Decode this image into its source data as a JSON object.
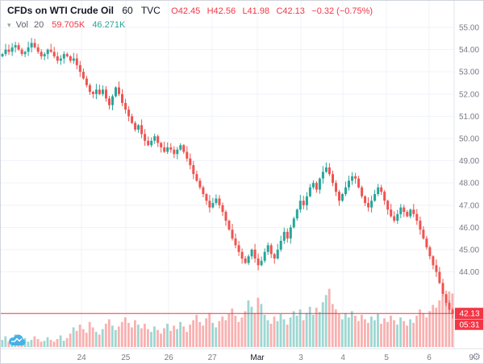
{
  "header": {
    "symbol": "CFDs on WTI Crude Oil",
    "interval": "60",
    "exchange": "TVC",
    "ohlc": {
      "o": "O42.45",
      "h": "H42.56",
      "l": "L41.98",
      "c": "C42.13",
      "change": "−0.32 (−0.75%)"
    }
  },
  "indicator": {
    "name": "Vol",
    "param": "20",
    "value": "59.705K",
    "ma_value": "46.271K"
  },
  "colors": {
    "up": "#26a69a",
    "down": "#ef5350",
    "grid": "#f0f3fa",
    "axis_text": "#787b86",
    "price_line": "#f23645",
    "axis_border": "#e0e3eb",
    "background": "#ffffff",
    "logo_blue": "#47b1e5"
  },
  "chart_data": {
    "type": "candlestick",
    "title": "CFDs on WTI Crude Oil, 60, TVC",
    "ylim": [
      40.6,
      56.2
    ],
    "grid": true,
    "current_price": 42.13,
    "current_price_label": "42.13",
    "countdown": "05:31",
    "first_open": 53.7,
    "vol_max": 70,
    "y_ticks": [
      {
        "label": "55.00",
        "value": 55
      },
      {
        "label": "54.00",
        "value": 54
      },
      {
        "label": "53.00",
        "value": 53
      },
      {
        "label": "52.00",
        "value": 52
      },
      {
        "label": "51.00",
        "value": 51
      },
      {
        "label": "50.00",
        "value": 50
      },
      {
        "label": "49.00",
        "value": 49
      },
      {
        "label": "48.00",
        "value": 48
      },
      {
        "label": "47.00",
        "value": 47
      },
      {
        "label": "46.00",
        "value": 46
      },
      {
        "label": "45.00",
        "value": 45
      },
      {
        "label": "44.00",
        "value": 44
      }
    ],
    "time_labels": [
      {
        "text": "24",
        "x": 0.167
      },
      {
        "text": "25",
        "x": 0.258
      },
      {
        "text": "26",
        "x": 0.347
      },
      {
        "text": "27",
        "x": 0.437
      },
      {
        "text": "Mar",
        "x": 0.53,
        "bold": true
      },
      {
        "text": "3",
        "x": 0.62
      },
      {
        "text": "4",
        "x": 0.707
      },
      {
        "text": "5",
        "x": 0.797
      },
      {
        "text": "6",
        "x": 0.885
      },
      {
        "text": "9",
        "x": 0.972
      }
    ],
    "closes": [
      53.8,
      54.0,
      53.9,
      54.1,
      54.2,
      54.0,
      53.8,
      53.9,
      54.1,
      54.3,
      54.1,
      53.9,
      53.7,
      53.8,
      54.0,
      53.9,
      53.7,
      53.5,
      53.6,
      53.8,
      53.7,
      53.5,
      53.6,
      53.3,
      53.0,
      52.7,
      52.4,
      52.1,
      52.0,
      52.2,
      52.0,
      52.2,
      51.8,
      51.5,
      51.9,
      52.3,
      52.0,
      51.6,
      51.3,
      51.0,
      50.7,
      50.4,
      50.6,
      50.2,
      49.9,
      49.7,
      49.9,
      50.1,
      49.8,
      49.6,
      49.4,
      49.6,
      49.5,
      49.3,
      49.5,
      49.7,
      49.4,
      49.1,
      48.8,
      48.4,
      48.1,
      47.8,
      47.5,
      47.2,
      46.9,
      47.1,
      47.3,
      47.0,
      46.7,
      46.3,
      45.9,
      45.5,
      45.2,
      44.9,
      44.6,
      44.4,
      44.7,
      45.0,
      44.6,
      44.3,
      44.5,
      44.9,
      45.2,
      44.8,
      44.6,
      45.0,
      45.4,
      45.8,
      45.5,
      46.0,
      46.4,
      46.8,
      47.2,
      47.0,
      47.4,
      47.8,
      48.0,
      47.7,
      48.2,
      48.5,
      48.7,
      48.4,
      48.0,
      47.6,
      47.2,
      47.5,
      47.8,
      48.1,
      48.3,
      48.2,
      47.8,
      47.4,
      47.1,
      46.9,
      47.2,
      47.5,
      47.8,
      47.6,
      47.2,
      46.8,
      46.5,
      46.3,
      46.6,
      46.9,
      46.7,
      46.5,
      46.8,
      46.6,
      46.3,
      45.9,
      45.5,
      45.1,
      44.7,
      44.3,
      44.0,
      43.5,
      43.0,
      42.6,
      42.3,
      42.13
    ],
    "volumes": [
      8,
      12,
      6,
      9,
      14,
      7,
      5,
      10,
      6,
      8,
      12,
      9,
      6,
      7,
      11,
      8,
      6,
      9,
      13,
      7,
      10,
      15,
      22,
      18,
      25,
      20,
      16,
      28,
      22,
      17,
      14,
      20,
      26,
      31,
      24,
      19,
      23,
      28,
      33,
      27,
      22,
      30,
      25,
      21,
      26,
      20,
      17,
      23,
      19,
      15,
      21,
      26,
      18,
      24,
      20,
      28,
      23,
      17,
      25,
      30,
      36,
      28,
      24,
      32,
      38,
      27,
      22,
      29,
      34,
      30,
      37,
      43,
      35,
      28,
      33,
      40,
      52,
      45,
      38,
      55,
      48,
      36,
      30,
      26,
      34,
      29,
      37,
      31,
      25,
      33,
      40,
      35,
      42,
      30,
      38,
      45,
      36,
      44,
      39,
      50,
      58,
      65,
      48,
      42,
      37,
      31,
      38,
      33,
      40,
      35,
      29,
      36,
      31,
      27,
      34,
      30,
      37,
      26,
      32,
      28,
      35,
      30,
      25,
      33,
      29,
      24,
      31,
      27,
      35,
      42,
      38,
      33,
      40,
      47,
      44,
      52,
      58,
      50,
      62,
      59.7
    ]
  },
  "footer": {
    "gear": "⚙"
  }
}
